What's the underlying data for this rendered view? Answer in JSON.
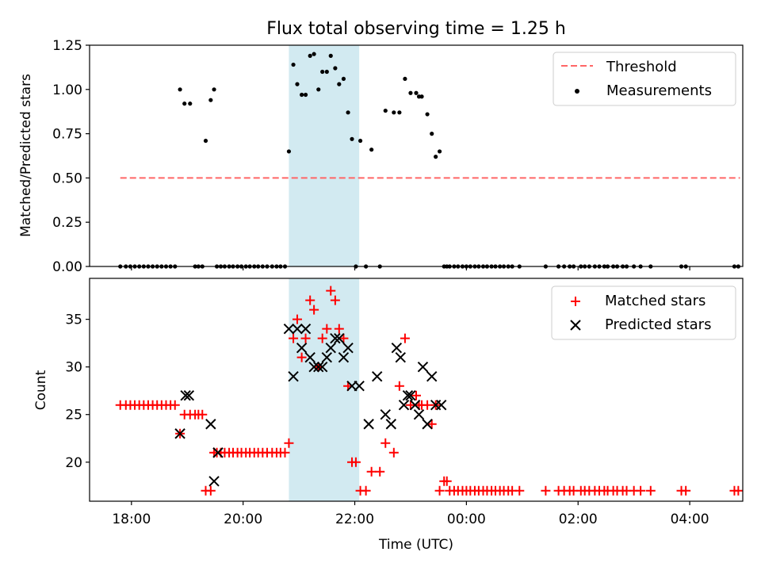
{
  "colors": {
    "shade": "#add8e6",
    "threshold": "#ff6666",
    "measurement": "#000000",
    "matched": "#ff0000",
    "predicted": "#000000",
    "axis": "#000000",
    "legend_border": "#cccccc"
  },
  "chart_data": [
    {
      "type": "scatter",
      "panel": "top",
      "title": "Flux total observing time = 1.25 h",
      "ylabel": "Matched/Predicted stars",
      "xlabel": "",
      "xlim": [
        17.25,
        28.95
      ],
      "ylim": [
        0,
        1.25
      ],
      "yticks": [
        0,
        0.25,
        0.5,
        0.75,
        1.0,
        1.25
      ],
      "ytick_labels": [
        "0.00",
        "0.25",
        "0.50",
        "0.75",
        "1.00",
        "1.25"
      ],
      "xticks": [
        18,
        20,
        22,
        24,
        26,
        28
      ],
      "shaded_range_hours": [
        20.82,
        22.08
      ],
      "legend_position": "top-right",
      "series": [
        {
          "name": "Threshold",
          "style": "dashed-line",
          "x": [
            17.8,
            28.9
          ],
          "y": [
            0.5,
            0.5
          ]
        },
        {
          "name": "Measurements",
          "style": "dot",
          "x": [
            17.8,
            17.9,
            17.98,
            18.06,
            18.14,
            18.22,
            18.3,
            18.38,
            18.46,
            18.54,
            18.62,
            18.7,
            18.78,
            18.87,
            18.95,
            19.05,
            19.14,
            19.2,
            19.27,
            19.33,
            19.42,
            19.48,
            19.53,
            19.6,
            19.67,
            19.75,
            19.82,
            19.9,
            19.97,
            20.05,
            20.12,
            20.2,
            20.27,
            20.35,
            20.43,
            20.52,
            20.6,
            20.67,
            20.75,
            20.82,
            20.9,
            20.97,
            21.05,
            21.12,
            21.2,
            21.27,
            21.35,
            21.42,
            21.5,
            21.57,
            21.65,
            21.72,
            21.8,
            21.88,
            21.95,
            22.02,
            22.1,
            22.2,
            22.3,
            22.45,
            22.55,
            22.7,
            22.8,
            22.9,
            23.0,
            23.1,
            23.15,
            23.2,
            23.3,
            23.38,
            23.45,
            23.52,
            23.6,
            23.65,
            23.7,
            23.78,
            23.85,
            23.93,
            24.0,
            24.07,
            24.15,
            24.22,
            24.3,
            24.37,
            24.45,
            24.52,
            24.6,
            24.67,
            24.75,
            24.82,
            24.95,
            25.42,
            25.65,
            25.75,
            25.85,
            25.92,
            26.05,
            26.12,
            26.2,
            26.3,
            26.38,
            26.47,
            26.53,
            26.63,
            26.7,
            26.8,
            26.87,
            27.0,
            27.12,
            27.3,
            27.85,
            27.93,
            28.8,
            28.87
          ],
          "y": [
            0,
            0,
            0,
            0,
            0,
            0,
            0,
            0,
            0,
            0,
            0,
            0,
            0,
            1.0,
            0.92,
            0.92,
            0,
            0,
            0,
            0.71,
            0.94,
            1.0,
            0,
            0,
            0,
            0,
            0,
            0,
            0,
            0,
            0,
            0,
            0,
            0,
            0,
            0,
            0,
            0,
            0,
            0.65,
            1.14,
            1.03,
            0.97,
            0.97,
            1.19,
            1.2,
            1.0,
            1.1,
            1.1,
            1.19,
            1.12,
            1.03,
            1.06,
            0.87,
            0.72,
            0,
            0.71,
            0,
            0.66,
            0,
            0.88,
            0.87,
            0.87,
            1.06,
            0.98,
            0.98,
            0.96,
            0.96,
            0.86,
            0.75,
            0.62,
            0.65,
            0,
            0,
            0,
            0,
            0,
            0,
            0,
            0,
            0,
            0,
            0,
            0,
            0,
            0,
            0,
            0,
            0,
            0,
            0,
            0,
            0,
            0,
            0,
            0,
            0,
            0,
            0,
            0,
            0,
            0,
            0,
            0,
            0,
            0,
            0,
            0,
            0,
            0,
            0,
            0,
            0,
            0
          ]
        }
      ],
      "legend": [
        "Threshold",
        "Measurements"
      ]
    },
    {
      "type": "scatter",
      "panel": "bottom",
      "title": "",
      "ylabel": "Count",
      "xlabel": "Time (UTC)",
      "xlim": [
        17.25,
        28.95
      ],
      "ylim": [
        15.9,
        39.3
      ],
      "yticks": [
        20,
        25,
        30,
        35
      ],
      "ytick_labels": [
        "20",
        "25",
        "30",
        "35"
      ],
      "xticks": [
        18,
        20,
        22,
        24,
        26,
        28
      ],
      "xtick_labels": [
        "18:00",
        "20:00",
        "22:00",
        "00:00",
        "02:00",
        "04:00"
      ],
      "shaded_range_hours": [
        20.82,
        22.08
      ],
      "legend_position": "top-right",
      "series": [
        {
          "name": "Matched stars",
          "marker": "plus",
          "x": [
            17.8,
            17.9,
            17.98,
            18.06,
            18.14,
            18.22,
            18.3,
            18.38,
            18.46,
            18.54,
            18.62,
            18.7,
            18.78,
            18.87,
            18.95,
            19.05,
            19.14,
            19.2,
            19.27,
            19.33,
            19.42,
            19.48,
            19.53,
            19.6,
            19.67,
            19.75,
            19.82,
            19.9,
            19.97,
            20.05,
            20.12,
            20.2,
            20.27,
            20.35,
            20.43,
            20.52,
            20.6,
            20.67,
            20.75,
            20.82,
            20.9,
            20.97,
            21.05,
            21.12,
            21.2,
            21.27,
            21.35,
            21.42,
            21.5,
            21.57,
            21.65,
            21.72,
            21.8,
            21.88,
            21.95,
            22.02,
            22.1,
            22.2,
            22.3,
            22.45,
            22.55,
            22.7,
            22.8,
            22.9,
            23.0,
            23.1,
            23.15,
            23.2,
            23.3,
            23.38,
            23.45,
            23.52,
            23.6,
            23.65,
            23.7,
            23.78,
            23.85,
            23.93,
            24.0,
            24.07,
            24.15,
            24.22,
            24.3,
            24.37,
            24.45,
            24.52,
            24.6,
            24.67,
            24.75,
            24.82,
            24.95,
            25.42,
            25.65,
            25.75,
            25.85,
            25.92,
            26.05,
            26.12,
            26.2,
            26.3,
            26.38,
            26.47,
            26.53,
            26.63,
            26.7,
            26.8,
            26.87,
            27.0,
            27.12,
            27.3,
            27.85,
            27.93,
            28.8,
            28.87
          ],
          "y": [
            26,
            26,
            26,
            26,
            26,
            26,
            26,
            26,
            26,
            26,
            26,
            26,
            26,
            23,
            25,
            25,
            25,
            25,
            25,
            17,
            17,
            21,
            21,
            21,
            21,
            21,
            21,
            21,
            21,
            21,
            21,
            21,
            21,
            21,
            21,
            21,
            21,
            21,
            21,
            22,
            33,
            35,
            31,
            33,
            37,
            36,
            30,
            33,
            34,
            38,
            37,
            34,
            33,
            28,
            20,
            20,
            17,
            17,
            19,
            19,
            22,
            21,
            28,
            33,
            26,
            27,
            26,
            26,
            26,
            24,
            26,
            17,
            18,
            18,
            17,
            17,
            17,
            17,
            17,
            17,
            17,
            17,
            17,
            17,
            17,
            17,
            17,
            17,
            17,
            17,
            17,
            17,
            17,
            17,
            17,
            17,
            17,
            17,
            17,
            17,
            17,
            17,
            17,
            17,
            17,
            17,
            17,
            17,
            17,
            17,
            17,
            17,
            17,
            17
          ]
        },
        {
          "name": "Predicted stars",
          "marker": "x",
          "x": [
            18.87,
            18.97,
            19.03,
            19.42,
            19.48,
            19.55,
            20.82,
            20.9,
            20.97,
            21.05,
            21.12,
            21.2,
            21.27,
            21.35,
            21.42,
            21.5,
            21.57,
            21.65,
            21.72,
            21.8,
            21.88,
            21.95,
            22.08,
            22.25,
            22.4,
            22.55,
            22.65,
            22.75,
            22.82,
            22.88,
            22.95,
            23.0,
            23.08,
            23.15,
            23.22,
            23.3,
            23.38,
            23.45,
            23.55
          ],
          "y": [
            23,
            27,
            27,
            24,
            18,
            21,
            34,
            29,
            34,
            32,
            34,
            31,
            30,
            30,
            30,
            31,
            32,
            33,
            33,
            31,
            32,
            28,
            28,
            24,
            29,
            25,
            24,
            32,
            31,
            26,
            27,
            27,
            26,
            25,
            30,
            24,
            29,
            26,
            26
          ]
        }
      ],
      "legend": [
        "Matched stars",
        "Predicted stars"
      ]
    }
  ]
}
